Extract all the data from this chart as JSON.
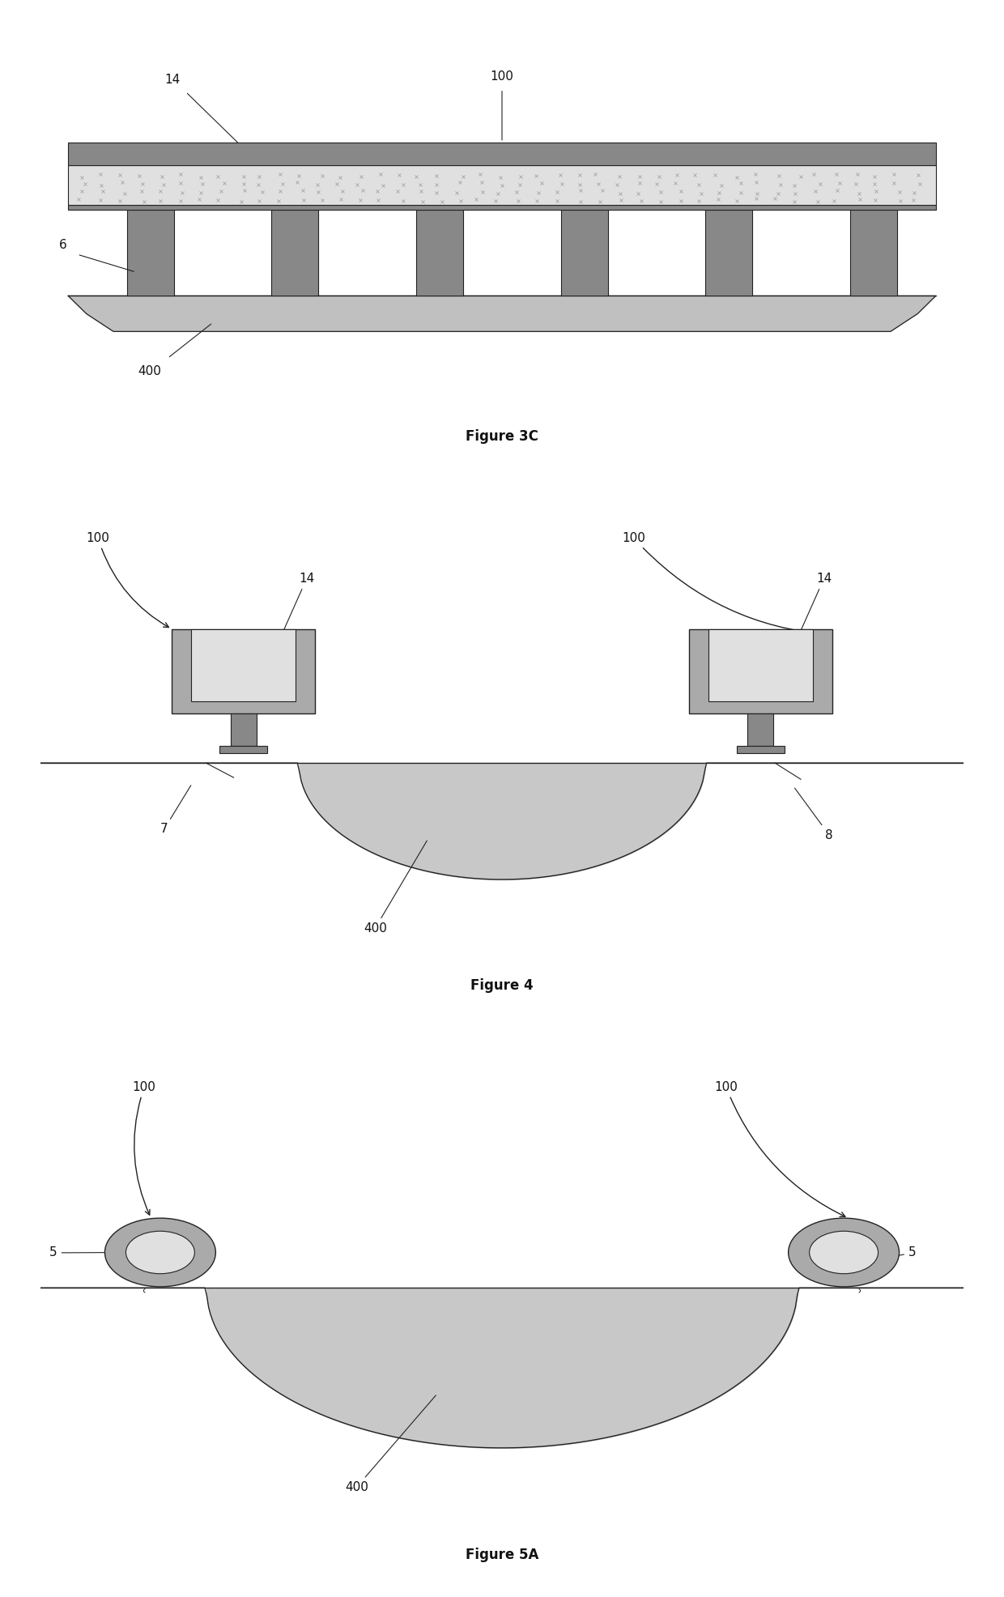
{
  "fig_width": 12.4,
  "fig_height": 19.72,
  "bg_color": "#ffffff",
  "dark_gray": "#888888",
  "medium_gray": "#aaaaaa",
  "light_gray": "#cccccc",
  "lighter_gray": "#e0e0e0",
  "ground_color": "#c0c0c0",
  "water_color": "#c8c8c8",
  "line_color": "#222222",
  "label_color": "#111111",
  "fig3c_label": "Figure 3C",
  "fig4_label": "Figure 4",
  "fig5a_label": "Figure 5A"
}
